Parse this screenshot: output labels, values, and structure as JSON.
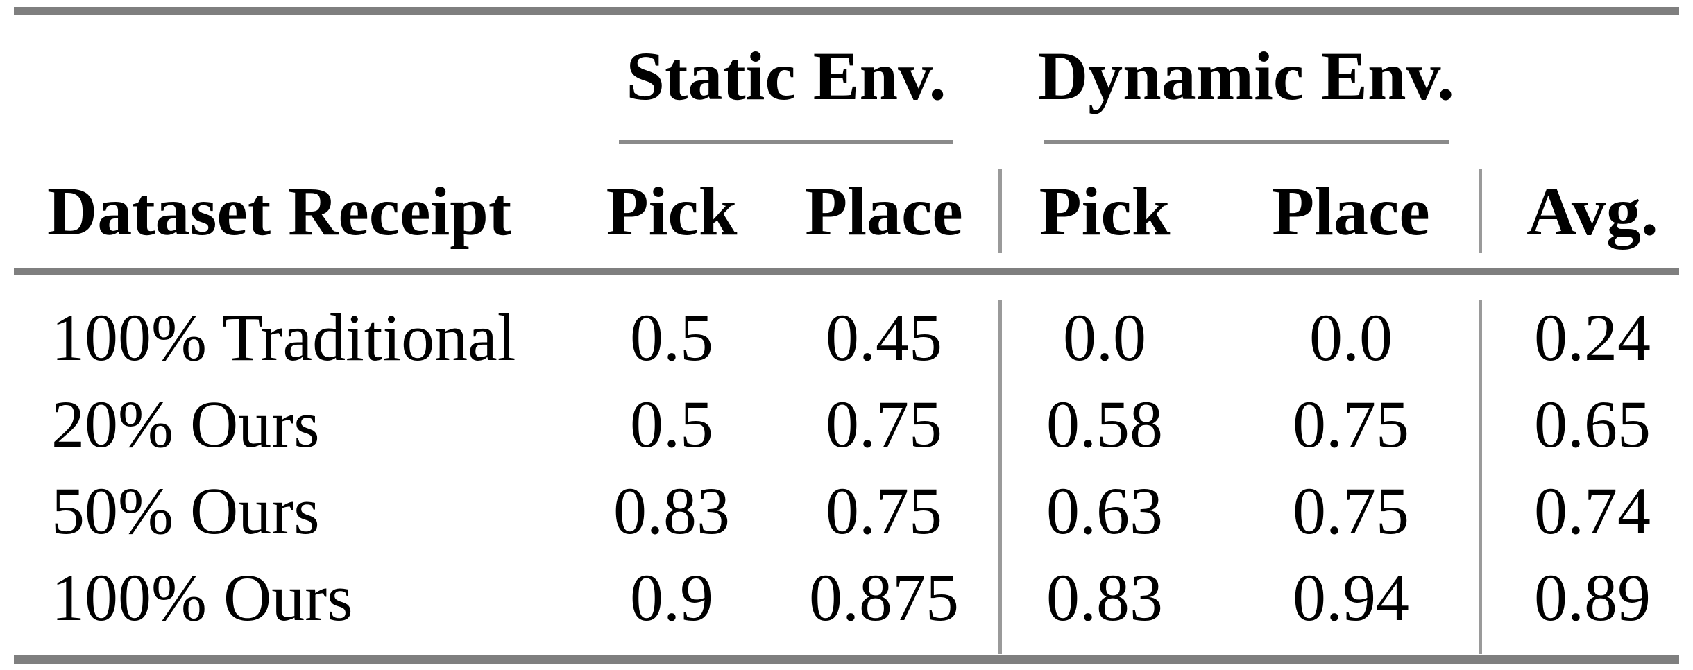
{
  "table": {
    "groups": {
      "static": "Static Env.",
      "dynamic": "Dynamic Env."
    },
    "header": {
      "label": "Dataset Receipt",
      "static_pick": "Pick",
      "static_place": "Place",
      "dynamic_pick": "Pick",
      "dynamic_place": "Place",
      "avg": "Avg."
    },
    "rows": [
      {
        "label": "100% Traditional",
        "values": [
          "0.5",
          "0.45",
          "0.0",
          "0.0",
          "0.24"
        ]
      },
      {
        "label": "20% Ours",
        "values": [
          "0.5",
          "0.75",
          "0.58",
          "0.75",
          "0.65"
        ]
      },
      {
        "label": "50% Ours",
        "values": [
          "0.83",
          "0.75",
          "0.63",
          "0.75",
          "0.74"
        ]
      },
      {
        "label": "100% Ours",
        "values": [
          "0.9",
          "0.875",
          "0.83",
          "0.94",
          "0.89"
        ]
      }
    ],
    "colors": {
      "heavy_rule": "#7f7f7f",
      "cmidrule": "#8a8a8a",
      "column_separator": "#9a9a9a",
      "text": "#000000",
      "background": "#ffffff"
    }
  }
}
